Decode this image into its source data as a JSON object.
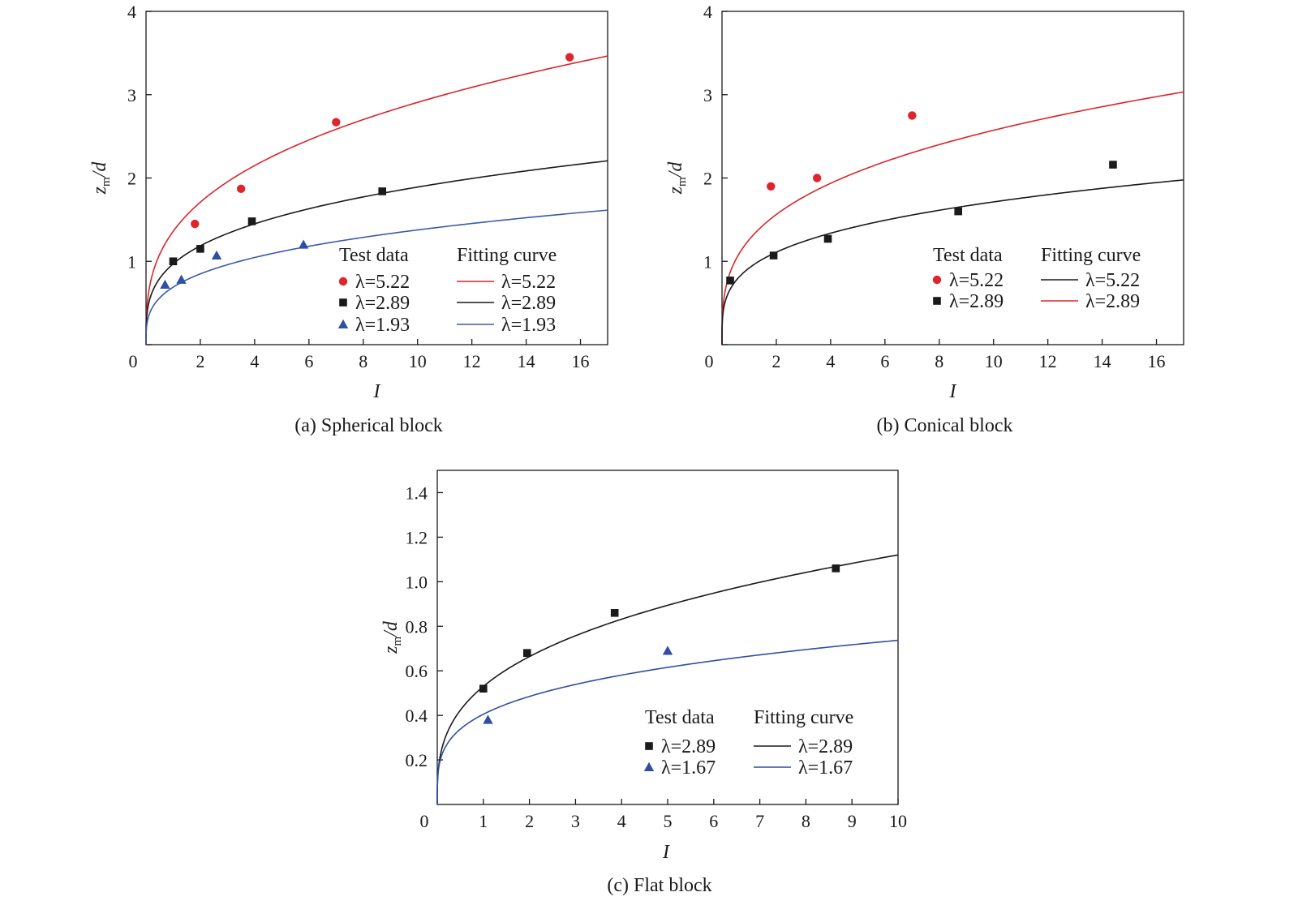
{
  "chart_data": [
    {
      "type": "scatter",
      "caption": "(a) Spherical block",
      "xlabel": "I",
      "ylabel_main": "z",
      "ylabel_sub": "m",
      "ylabel_tail": "/d",
      "xlim": [
        0,
        17
      ],
      "ylim": [
        0,
        4
      ],
      "xticks": [
        0,
        2,
        4,
        6,
        8,
        10,
        12,
        14,
        16
      ],
      "yticks": [
        0,
        1,
        2,
        3,
        4
      ],
      "xtick_labels": [
        "0",
        "2",
        "4",
        "6",
        "8",
        "10",
        "12",
        "14",
        "16"
      ],
      "ytick_labels": [
        "0",
        "1",
        "2",
        "3",
        "4"
      ],
      "legend_test_header": "Test data",
      "legend_fit_header": "Fitting curve",
      "legend_position": "lower-right",
      "points": [
        {
          "label": "λ=5.22",
          "color": "#e0242b",
          "marker": "circle",
          "x": [
            1.8,
            3.5,
            7.0,
            15.6
          ],
          "y": [
            1.45,
            1.87,
            2.67,
            3.45
          ]
        },
        {
          "label": "λ=2.89",
          "color": "#1a1a1a",
          "marker": "square",
          "x": [
            1.0,
            2.0,
            3.9,
            8.7
          ],
          "y": [
            1.0,
            1.15,
            1.48,
            1.84
          ]
        },
        {
          "label": "λ=1.93",
          "color": "#2e4fa3",
          "marker": "triangle",
          "x": [
            0.7,
            1.3,
            2.6,
            5.8
          ],
          "y": [
            0.72,
            0.78,
            1.07,
            1.2
          ]
        }
      ],
      "curves": [
        {
          "label": "λ=5.22",
          "color": "#d8262c",
          "coef": 1.36,
          "exp": 0.33
        },
        {
          "label": "λ=2.89",
          "color": "#1a1a1a",
          "coef": 0.97,
          "exp": 0.29
        },
        {
          "label": "λ=1.93",
          "color": "#3a5aa8",
          "coef": 0.69,
          "exp": 0.3
        }
      ]
    },
    {
      "type": "scatter",
      "caption": "(b) Conical block",
      "xlabel": "I",
      "ylabel_main": "z",
      "ylabel_sub": "m",
      "ylabel_tail": "/d",
      "xlim": [
        0,
        17
      ],
      "ylim": [
        0,
        4
      ],
      "xticks": [
        0,
        2,
        4,
        6,
        8,
        10,
        12,
        14,
        16
      ],
      "yticks": [
        0,
        1,
        2,
        3,
        4
      ],
      "xtick_labels": [
        "0",
        "2",
        "4",
        "6",
        "8",
        "10",
        "12",
        "14",
        "16"
      ],
      "ytick_labels": [
        "0",
        "1",
        "2",
        "3",
        "4"
      ],
      "legend_test_header": "Test data",
      "legend_fit_header": "Fitting curve",
      "legend_position": "lower-right",
      "points": [
        {
          "label": "λ=5.22",
          "color": "#e0242b",
          "marker": "circle",
          "x": [
            1.8,
            3.5,
            7.0
          ],
          "y": [
            1.9,
            2.0,
            2.75
          ]
        },
        {
          "label": "λ=2.89",
          "color": "#1a1a1a",
          "marker": "square",
          "x": [
            0.3,
            1.9,
            3.9,
            8.7,
            14.4
          ],
          "y": [
            0.77,
            1.07,
            1.27,
            1.6,
            2.16
          ]
        }
      ],
      "curves": [
        {
          "label": "λ=5.22",
          "color": "#1a1a1a",
          "legend_color": "#1a1a1a",
          "coef": 1.26,
          "exp": 0.31,
          "draw_color": "#d8262c"
        },
        {
          "label": "λ=2.89",
          "color": "#d8262c",
          "legend_color": "#d8262c",
          "coef": 0.92,
          "exp": 0.27,
          "draw_color": "#1a1a1a"
        }
      ]
    },
    {
      "type": "scatter",
      "caption": "(c) Flat block",
      "xlabel": "I",
      "ylabel_main": "z",
      "ylabel_sub": "m",
      "ylabel_tail": "/d",
      "xlim": [
        0,
        10
      ],
      "ylim": [
        0,
        1.5
      ],
      "xticks": [
        0,
        1,
        2,
        3,
        4,
        5,
        6,
        7,
        8,
        9,
        10
      ],
      "yticks": [
        0.2,
        0.4,
        0.6,
        0.8,
        1.0,
        1.2,
        1.4
      ],
      "xtick_labels": [
        "0",
        "1",
        "2",
        "3",
        "4",
        "5",
        "6",
        "7",
        "8",
        "9",
        "10"
      ],
      "ytick_labels": [
        "0.2",
        "0.4",
        "0.6",
        "0.8",
        "1.0",
        "1.2",
        "1.4"
      ],
      "legend_test_header": "Test data",
      "legend_fit_header": "Fitting curve",
      "legend_position": "lower-right",
      "points": [
        {
          "label": "λ=2.89",
          "color": "#1a1a1a",
          "marker": "square",
          "x": [
            1.0,
            1.95,
            3.85,
            8.65
          ],
          "y": [
            0.52,
            0.68,
            0.86,
            1.06
          ]
        },
        {
          "label": "λ=1.67",
          "color": "#2e4fa3",
          "marker": "triangle",
          "x": [
            1.1,
            5.0
          ],
          "y": [
            0.38,
            0.69
          ]
        }
      ],
      "curves": [
        {
          "label": "λ=2.89",
          "color": "#1a1a1a",
          "coef": 0.53,
          "exp": 0.325
        },
        {
          "label": "λ=1.67",
          "color": "#2e4fa3",
          "coef": 0.405,
          "exp": 0.26
        }
      ]
    }
  ]
}
